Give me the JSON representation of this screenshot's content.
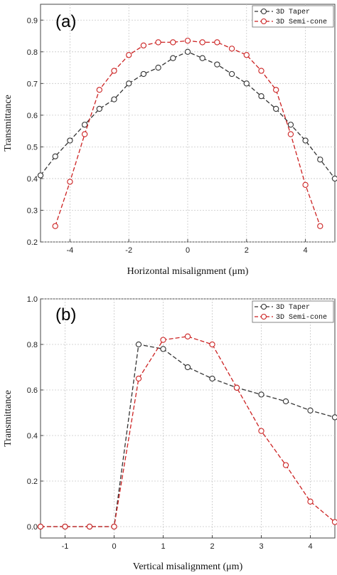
{
  "chart_data": [
    {
      "type": "line",
      "panel_label": "(a)",
      "xlabel": "Horizontal misalignment (μm)",
      "ylabel": "Transmittance",
      "xlim": [
        -5,
        5
      ],
      "ylim": [
        0.2,
        0.95
      ],
      "xticks": [
        -4,
        -2,
        0,
        2,
        4
      ],
      "yticks": [
        0.2,
        0.3,
        0.4,
        0.5,
        0.6,
        0.7,
        0.8,
        0.9
      ],
      "grid": true,
      "legend": "top-right",
      "series": [
        {
          "name": "3D Taper",
          "color": "#333333",
          "x": [
            -5,
            -4.5,
            -4,
            -3.5,
            -3,
            -2.5,
            -2,
            -1.5,
            -1,
            -0.5,
            0,
            0.5,
            1,
            1.5,
            2,
            2.5,
            3,
            3.5,
            4,
            4.5,
            5
          ],
          "y": [
            0.41,
            0.47,
            0.52,
            0.57,
            0.62,
            0.65,
            0.7,
            0.73,
            0.75,
            0.78,
            0.8,
            0.78,
            0.76,
            0.73,
            0.7,
            0.66,
            0.62,
            0.57,
            0.52,
            0.46,
            0.4
          ]
        },
        {
          "name": "3D Semi-cone",
          "color": "#cc2222",
          "x": [
            -4.5,
            -4,
            -3.5,
            -3,
            -2.5,
            -2,
            -1.5,
            -1,
            -0.5,
            0,
            0.5,
            1,
            1.5,
            2,
            2.5,
            3,
            3.5,
            4,
            4.5
          ],
          "y": [
            0.25,
            0.39,
            0.54,
            0.68,
            0.74,
            0.79,
            0.82,
            0.83,
            0.83,
            0.835,
            0.83,
            0.83,
            0.81,
            0.79,
            0.74,
            0.68,
            0.54,
            0.38,
            0.25
          ]
        }
      ]
    },
    {
      "type": "line",
      "panel_label": "(b)",
      "xlabel": "Vertical misalignment (μm)",
      "ylabel": "Transmittance",
      "xlim": [
        -1.5,
        4.5
      ],
      "ylim": [
        -0.05,
        1.0
      ],
      "xticks": [
        -1,
        0,
        1,
        2,
        3,
        4
      ],
      "yticks": [
        0.0,
        0.2,
        0.4,
        0.6,
        0.8,
        1.0
      ],
      "grid": true,
      "legend": "top-right",
      "series": [
        {
          "name": "3D Taper",
          "color": "#333333",
          "x": [
            -1.5,
            -1,
            -0.5,
            0,
            0.5,
            1,
            1.5,
            2,
            2.5,
            3,
            3.5,
            4,
            4.5
          ],
          "y": [
            0.0,
            0.0,
            0.0,
            0.0,
            0.8,
            0.78,
            0.7,
            0.65,
            0.61,
            0.58,
            0.55,
            0.51,
            0.48
          ]
        },
        {
          "name": "3D Semi-cone",
          "color": "#cc2222",
          "x": [
            -1.5,
            -1,
            -0.5,
            0,
            0.5,
            1,
            1.5,
            2,
            2.5,
            3,
            3.5,
            4,
            4.5
          ],
          "y": [
            0.0,
            0.0,
            0.0,
            0.0,
            0.65,
            0.82,
            0.835,
            0.8,
            0.61,
            0.42,
            0.27,
            0.11,
            0.02
          ]
        }
      ]
    }
  ]
}
